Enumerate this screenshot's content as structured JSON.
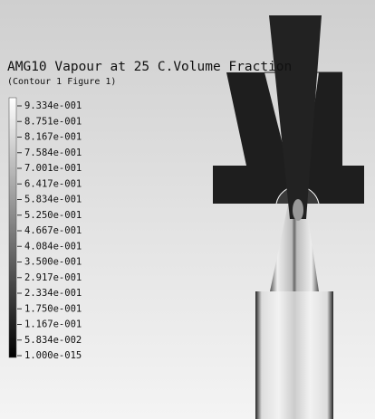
{
  "title": "AMG10 Vapour at 25 C.Volume Fraction",
  "subtitle": "(Contour 1 Figure 1)",
  "legend": {
    "labels": [
      "9.334e-001",
      "8.751e-001",
      "8.167e-001",
      "7.584e-001",
      "7.001e-001",
      "6.417e-001",
      "5.834e-001",
      "5.250e-001",
      "4.667e-001",
      "4.084e-001",
      "3.500e-001",
      "2.917e-001",
      "2.334e-001",
      "1.750e-001",
      "1.167e-001",
      "5.834e-002",
      "1.000e-015"
    ]
  }
}
